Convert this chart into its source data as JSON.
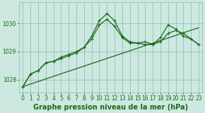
{
  "title": "Graphe pression niveau de la mer (hPa)",
  "bg_color": "#cce8e0",
  "grid_color": "#88bbaa",
  "line_color": "#1a6b1a",
  "x_ticks": [
    0,
    1,
    2,
    3,
    4,
    5,
    6,
    7,
    8,
    9,
    10,
    11,
    12,
    13,
    14,
    15,
    16,
    17,
    18,
    19,
    20,
    21,
    22,
    23
  ],
  "y_ticks": [
    1028,
    1029,
    1030
  ],
  "ylim": [
    1027.55,
    1030.75
  ],
  "xlim": [
    -0.5,
    23.5
  ],
  "line_trend_x": [
    0,
    23
  ],
  "line_trend_y": [
    1027.75,
    1029.85
  ],
  "line_main_x": [
    0,
    1,
    2,
    3,
    4,
    5,
    6,
    7,
    8,
    9,
    10,
    11,
    12,
    13,
    14,
    15,
    16,
    17,
    18,
    19,
    20,
    21,
    22,
    23
  ],
  "line_main_y": [
    1027.75,
    1028.2,
    1028.32,
    1028.6,
    1028.65,
    1028.8,
    1028.9,
    1029.0,
    1029.15,
    1029.55,
    1030.1,
    1030.35,
    1030.1,
    1029.55,
    1029.35,
    1029.3,
    1029.25,
    1029.25,
    1029.35,
    1029.65,
    1029.75,
    1029.65,
    1029.45,
    1029.25
  ],
  "line_second_x": [
    0,
    1,
    2,
    3,
    4,
    5,
    6,
    7,
    8,
    9,
    10,
    11,
    12,
    13,
    14,
    15,
    16,
    17,
    18,
    19,
    20,
    21,
    22,
    23
  ],
  "line_second_y": [
    1027.75,
    1028.2,
    1028.32,
    1028.6,
    1028.65,
    1028.75,
    1028.85,
    1028.95,
    1029.15,
    1029.45,
    1029.95,
    1030.15,
    1029.9,
    1029.5,
    1029.3,
    1029.3,
    1029.35,
    1029.25,
    1029.5,
    1029.95,
    1029.8,
    1029.55,
    1029.45,
    1029.25
  ],
  "marker": "+",
  "markersize": 3.5,
  "linewidth": 0.9,
  "title_fontsize": 7,
  "tick_fontsize": 5.5
}
